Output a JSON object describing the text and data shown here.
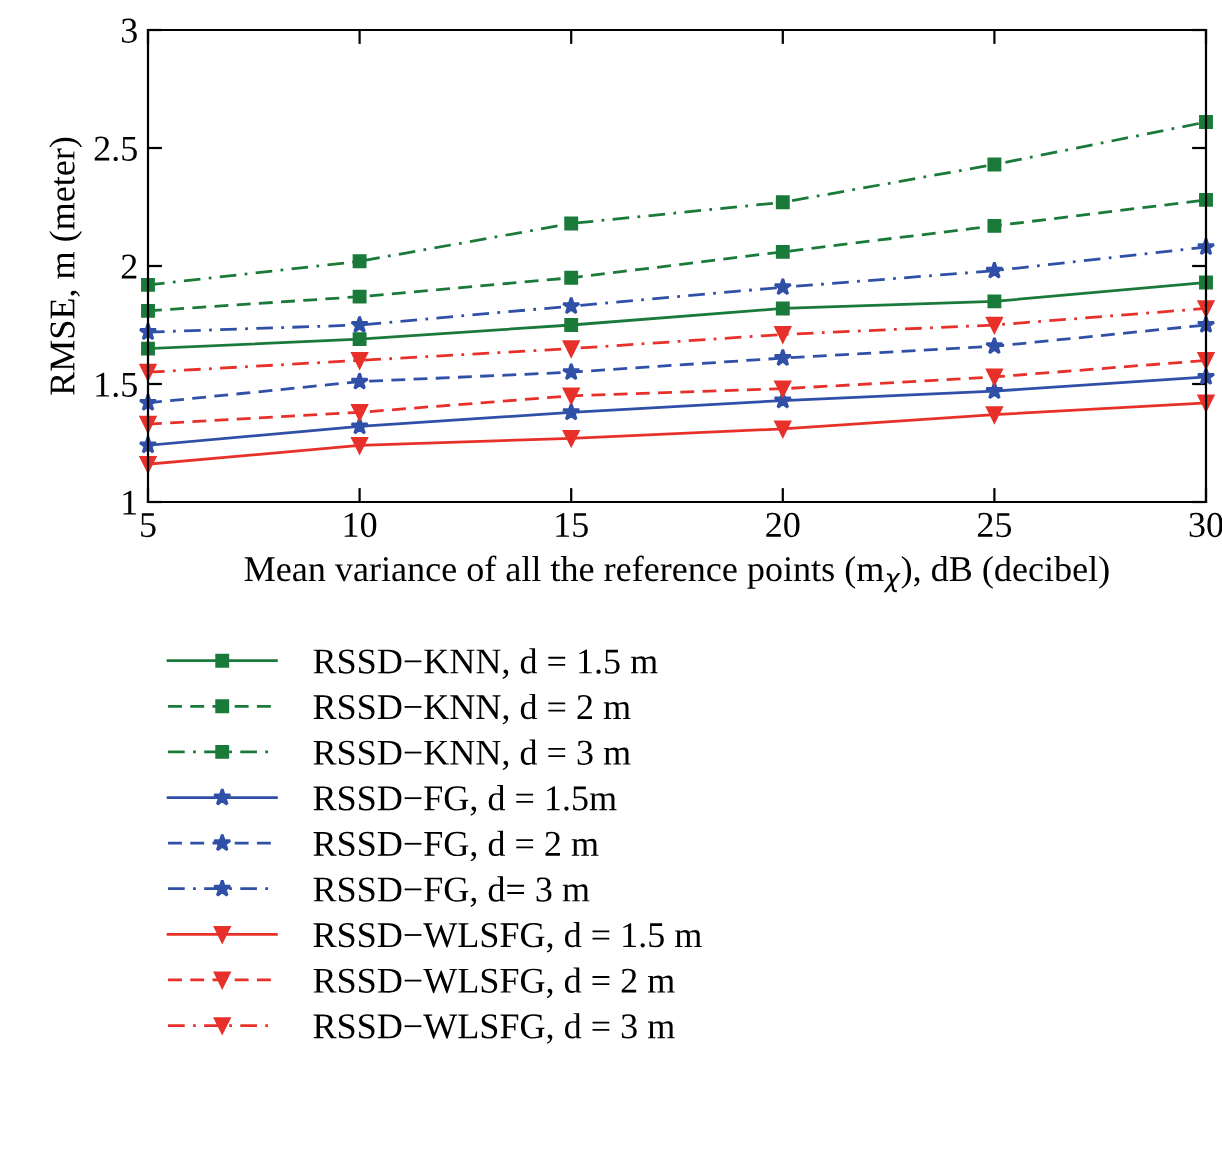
{
  "chart_data": {
    "type": "line",
    "xlabel": "Mean variance of all the reference points (m$_{χ}$), dB (decibel)",
    "ylabel": "RMSE, m (meter)",
    "x": [
      5,
      10,
      15,
      20,
      25,
      30
    ],
    "xlim": [
      5,
      30
    ],
    "xticks": [
      5,
      10,
      15,
      20,
      25,
      30
    ],
    "ylim": [
      1,
      3
    ],
    "yticks": [
      1,
      1.5,
      2,
      2.5,
      3
    ],
    "grid": false,
    "legend": "bottom",
    "series": [
      {
        "name": "RSSD−KNN, d = 1.5 m",
        "color": "#1a7a3a",
        "marker": "square",
        "line_style": "solid",
        "values": [
          1.65,
          1.69,
          1.75,
          1.82,
          1.85,
          1.93
        ]
      },
      {
        "name": "RSSD−KNN, d = 2 m",
        "color": "#1a7a3a",
        "marker": "square",
        "line_style": "dashed",
        "values": [
          1.81,
          1.87,
          1.95,
          2.06,
          2.17,
          2.28
        ]
      },
      {
        "name": "RSSD−KNN, d = 3 m",
        "color": "#1a7a3a",
        "marker": "square",
        "line_style": "dashdot",
        "values": [
          1.92,
          2.02,
          2.18,
          2.27,
          2.43,
          2.61
        ]
      },
      {
        "name": "RSSD−FG, d = 1.5m",
        "color": "#3050a8",
        "marker": "star",
        "line_style": "solid",
        "values": [
          1.24,
          1.32,
          1.38,
          1.43,
          1.47,
          1.53
        ]
      },
      {
        "name": "RSSD−FG, d = 2 m",
        "color": "#3050a8",
        "marker": "star",
        "line_style": "dashed",
        "values": [
          1.42,
          1.51,
          1.55,
          1.61,
          1.66,
          1.75
        ]
      },
      {
        "name": "RSSD−FG, d= 3 m",
        "color": "#3050a8",
        "marker": "star",
        "line_style": "dashdot",
        "values": [
          1.72,
          1.75,
          1.83,
          1.91,
          1.98,
          2.08
        ]
      },
      {
        "name": "RSSD−WLSFG, d = 1.5 m",
        "color": "#e8302a",
        "marker": "triangle",
        "line_style": "solid",
        "values": [
          1.16,
          1.24,
          1.27,
          1.31,
          1.37,
          1.42
        ]
      },
      {
        "name": "RSSD−WLSFG, d = 2 m",
        "color": "#e8302a",
        "marker": "triangle",
        "line_style": "dashed",
        "values": [
          1.33,
          1.38,
          1.45,
          1.48,
          1.53,
          1.6
        ]
      },
      {
        "name": "RSSD−WLSFG, d = 3 m",
        "color": "#e8302a",
        "marker": "triangle",
        "line_style": "dashdot",
        "values": [
          1.55,
          1.6,
          1.65,
          1.71,
          1.75,
          1.82
        ]
      }
    ]
  }
}
